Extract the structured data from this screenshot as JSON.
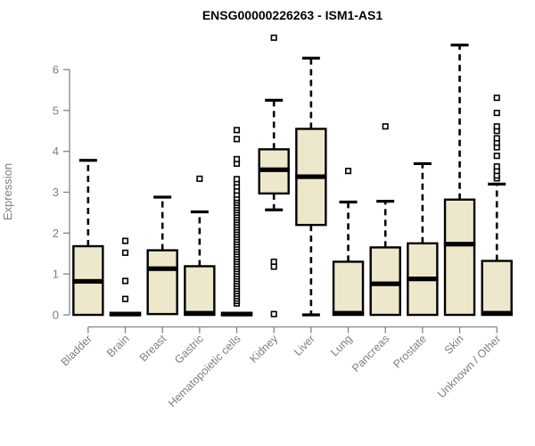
{
  "chart_data": {
    "type": "boxplot",
    "title": "ENSG00000226263 - ISM1-AS1",
    "ylabel": "Expression",
    "xlabel": "",
    "ylim": [
      0,
      6.9
    ],
    "yticks": [
      0,
      1,
      2,
      3,
      4,
      5,
      6
    ],
    "grid": false,
    "legend": null,
    "categories": [
      "Bladder",
      "Brain",
      "Breast",
      "Gastric",
      "Hematopoietic cells",
      "Kidney",
      "Liver",
      "Lung",
      "Pancreas",
      "Prostate",
      "Skin",
      "Unknown / Other"
    ],
    "boxes": [
      {
        "label": "Bladder",
        "whisker_low": 0,
        "q1": 0,
        "median": 0.82,
        "q3": 1.68,
        "whisker_high": 3.78,
        "outliers": []
      },
      {
        "label": "Brain",
        "whisker_low": 0,
        "q1": 0,
        "median": 0.02,
        "q3": 0.05,
        "whisker_high": 0.05,
        "outliers": [
          0.39,
          0.83,
          1.52,
          1.81
        ]
      },
      {
        "label": "Breast",
        "whisker_low": 0,
        "q1": 0.02,
        "median": 1.13,
        "q3": 1.58,
        "whisker_high": 2.88,
        "outliers": []
      },
      {
        "label": "Gastric",
        "whisker_low": 0,
        "q1": 0,
        "median": 0.04,
        "q3": 1.19,
        "whisker_high": 2.52,
        "outliers": [
          3.33
        ]
      },
      {
        "label": "Hematopoietic cells",
        "whisker_low": 0,
        "q1": 0,
        "median": 0.02,
        "q3": 0.04,
        "whisker_high": 0.04,
        "outliers": [
          0.28,
          0.34,
          0.4,
          0.46,
          0.52,
          0.58,
          0.64,
          0.7,
          0.76,
          0.82,
          0.88,
          0.94,
          1.0,
          1.06,
          1.12,
          1.18,
          1.24,
          1.3,
          1.36,
          1.42,
          1.48,
          1.54,
          1.6,
          1.66,
          1.72,
          1.78,
          1.84,
          1.9,
          1.96,
          2.02,
          2.08,
          2.14,
          2.2,
          2.26,
          2.32,
          2.38,
          2.44,
          2.5,
          2.56,
          2.62,
          2.68,
          2.74,
          2.8,
          2.86,
          2.94,
          3.04,
          3.14,
          3.24,
          3.32,
          3.7,
          3.81,
          4.3,
          4.52
        ]
      },
      {
        "label": "Kidney",
        "whisker_low": 2.57,
        "q1": 2.97,
        "median": 3.55,
        "q3": 4.05,
        "whisker_high": 5.25,
        "outliers": [
          0.02,
          1.18,
          1.3,
          6.78
        ]
      },
      {
        "label": "Liver",
        "whisker_low": 0,
        "q1": 2.2,
        "median": 3.38,
        "q3": 4.55,
        "whisker_high": 6.28,
        "outliers": []
      },
      {
        "label": "Lung",
        "whisker_low": 0,
        "q1": 0,
        "median": 0.04,
        "q3": 1.3,
        "whisker_high": 2.76,
        "outliers": [
          3.52
        ]
      },
      {
        "label": "Pancreas",
        "whisker_low": 0,
        "q1": 0,
        "median": 0.76,
        "q3": 1.65,
        "whisker_high": 2.78,
        "outliers": [
          4.61
        ]
      },
      {
        "label": "Prostate",
        "whisker_low": 0,
        "q1": 0,
        "median": 0.88,
        "q3": 1.75,
        "whisker_high": 3.7,
        "outliers": []
      },
      {
        "label": "Skin",
        "whisker_low": 0,
        "q1": 0,
        "median": 1.73,
        "q3": 2.82,
        "whisker_high": 6.6,
        "outliers": []
      },
      {
        "label": "Unknown / Other",
        "whisker_low": 0,
        "q1": 0,
        "median": 0.04,
        "q3": 1.32,
        "whisker_high": 3.2,
        "outliers": [
          3.34,
          3.41,
          3.52,
          3.63,
          3.89,
          4.1,
          4.21,
          4.32,
          4.5,
          4.61,
          4.94,
          5.31
        ]
      }
    ],
    "colors": {
      "box_fill": "#EDE8CB",
      "box_border": "#000000",
      "median": "#000000",
      "whisker": "#000000",
      "outlier_stroke": "#000000",
      "outlier_fill": "#ffffff",
      "axis": "#848484",
      "tick_label": "#7f7f7f",
      "title": "#000000",
      "background": "#ffffff"
    }
  }
}
